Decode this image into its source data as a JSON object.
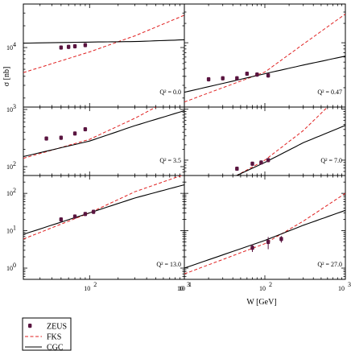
{
  "chart_data": {
    "type": "scatter",
    "ylabel": "σ [nb]",
    "xlabel": "W [GeV]",
    "xlim": [
      20,
      1000
    ],
    "xscale": "log",
    "yscale": "log",
    "legend": {
      "placement": "bottom-left",
      "entries": [
        {
          "name": "ZEUS",
          "style": "marker",
          "color": "#5a1540"
        },
        {
          "name": "FKS",
          "style": "dashed",
          "color": "#e02020"
        },
        {
          "name": "CGC",
          "style": "solid",
          "color": "#000000"
        }
      ]
    },
    "panels": [
      {
        "q2_label": "Q² = 0.0",
        "ylim": [
          1500,
          40000
        ],
        "yticks": [
          {
            "value": 10000,
            "base": "10",
            "exp": "4"
          }
        ],
        "data": [
          {
            "x": 50,
            "y": 10000
          },
          {
            "x": 60,
            "y": 10200
          },
          {
            "x": 70,
            "y": 10400
          },
          {
            "x": 90,
            "y": 10800
          }
        ],
        "cgc": [
          {
            "x": 20,
            "y": 11500
          },
          {
            "x": 100,
            "y": 11900
          },
          {
            "x": 300,
            "y": 12100
          },
          {
            "x": 1000,
            "y": 12800
          }
        ],
        "fks": [
          {
            "x": 20,
            "y": 4500
          },
          {
            "x": 100,
            "y": 8700
          },
          {
            "x": 300,
            "y": 14500
          },
          {
            "x": 1000,
            "y": 28000
          }
        ]
      },
      {
        "q2_label": "Q² = 0.47",
        "ylim": [
          1000,
          40000
        ],
        "yticks": [],
        "data": [
          {
            "x": 20,
            "y": 2700
          },
          {
            "x": 30,
            "y": 2800
          },
          {
            "x": 45,
            "y": 2800
          },
          {
            "x": 60,
            "y": 3300
          },
          {
            "x": 80,
            "y": 3200
          },
          {
            "x": 110,
            "y": 3100
          }
        ],
        "cgc": [
          {
            "x": 10,
            "y": 1700
          },
          {
            "x": 100,
            "y": 3300
          },
          {
            "x": 300,
            "y": 4500
          },
          {
            "x": 1000,
            "y": 6200
          }
        ],
        "fks": [
          {
            "x": 10,
            "y": 1200
          },
          {
            "x": 100,
            "y": 3500
          },
          {
            "x": 300,
            "y": 9500
          },
          {
            "x": 1000,
            "y": 28000
          }
        ]
      },
      {
        "q2_label": "Q² = 3.5",
        "ylim": [
          70,
          1100
        ],
        "yticks": [
          {
            "value": 100,
            "base": "10",
            "exp": "2"
          },
          {
            "value": 1000,
            "base": "10",
            "exp": "3"
          }
        ],
        "data": [
          {
            "x": 35,
            "y": 310
          },
          {
            "x": 50,
            "y": 320
          },
          {
            "x": 70,
            "y": 380
          },
          {
            "x": 90,
            "y": 450
          }
        ],
        "cgc": [
          {
            "x": 20,
            "y": 150
          },
          {
            "x": 100,
            "y": 280
          },
          {
            "x": 300,
            "y": 520
          },
          {
            "x": 1000,
            "y": 950
          }
        ],
        "fks": [
          {
            "x": 20,
            "y": 140
          },
          {
            "x": 100,
            "y": 300
          },
          {
            "x": 300,
            "y": 700
          },
          {
            "x": 500,
            "y": 1100
          }
        ]
      },
      {
        "q2_label": "Q² = 7.0",
        "ylim": [
          50,
          1100
        ],
        "yticks": [],
        "data": [
          {
            "x": 45,
            "y": 68
          },
          {
            "x": 70,
            "y": 85
          },
          {
            "x": 90,
            "y": 90
          },
          {
            "x": 110,
            "y": 100
          }
        ],
        "cgc": [
          {
            "x": 20,
            "y": 28
          },
          {
            "x": 100,
            "y": 90
          },
          {
            "x": 300,
            "y": 220
          },
          {
            "x": 1000,
            "y": 480
          }
        ],
        "fks": [
          {
            "x": 20,
            "y": 25
          },
          {
            "x": 100,
            "y": 100
          },
          {
            "x": 300,
            "y": 380
          },
          {
            "x": 600,
            "y": 1100
          }
        ]
      },
      {
        "q2_label": "Q² = 13.0",
        "ylim": [
          0.5,
          300
        ],
        "yticks": [
          {
            "value": 1,
            "base": "10",
            "exp": "0"
          },
          {
            "value": 10,
            "base": "10",
            "exp": "1"
          },
          {
            "value": 100,
            "base": "10",
            "exp": "2"
          }
        ],
        "data": [
          {
            "x": 50,
            "y": 20
          },
          {
            "x": 70,
            "y": 24
          },
          {
            "x": 90,
            "y": 28
          },
          {
            "x": 110,
            "y": 32
          }
        ],
        "cgc": [
          {
            "x": 20,
            "y": 8
          },
          {
            "x": 100,
            "y": 30
          },
          {
            "x": 300,
            "y": 75
          },
          {
            "x": 1000,
            "y": 170
          }
        ],
        "fks": [
          {
            "x": 20,
            "y": 6
          },
          {
            "x": 100,
            "y": 30
          },
          {
            "x": 300,
            "y": 110
          },
          {
            "x": 1000,
            "y": 320
          }
        ]
      },
      {
        "q2_label": "Q² = 27.0",
        "ylim": [
          0.5,
          300
        ],
        "yticks": [],
        "data": [
          {
            "x": 70,
            "y": 3.5,
            "err": 0.8
          },
          {
            "x": 110,
            "y": 5,
            "err": 1.8
          },
          {
            "x": 160,
            "y": 6,
            "err": 1.2
          }
        ],
        "cgc": [
          {
            "x": 10,
            "y": 1
          },
          {
            "x": 100,
            "y": 5.5
          },
          {
            "x": 300,
            "y": 14
          },
          {
            "x": 1000,
            "y": 35
          }
        ],
        "fks": [
          {
            "x": 10,
            "y": 0.7
          },
          {
            "x": 100,
            "y": 4.5
          },
          {
            "x": 300,
            "y": 18
          },
          {
            "x": 1000,
            "y": 100
          }
        ]
      }
    ],
    "xticks": [
      {
        "value": 100,
        "base": "10",
        "exp": "2"
      },
      {
        "value": 1000,
        "base": "10",
        "exp": "3"
      }
    ]
  }
}
